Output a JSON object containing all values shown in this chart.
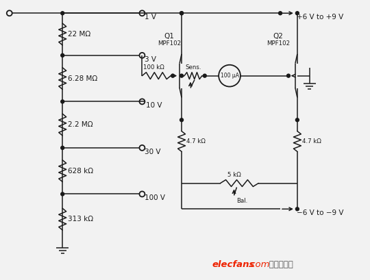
{
  "bg_color": "#f2f2f2",
  "line_color": "#000000",
  "figsize": [
    5.4,
    4.09
  ],
  "dpi": 100,
  "watermark_red": "elecfans",
  "watermark_dot": ".com",
  "watermark_cn": "电子发烧友"
}
